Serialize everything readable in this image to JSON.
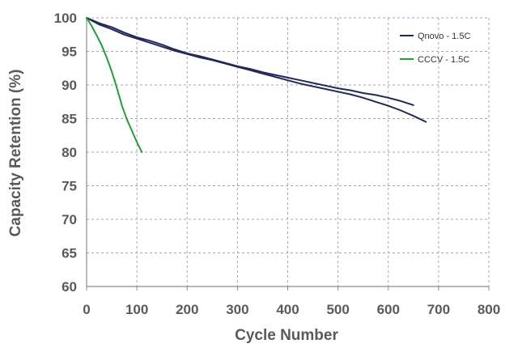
{
  "chart_data": {
    "type": "line",
    "title": "",
    "xlabel": "Cycle Number",
    "ylabel": "Capacity Retention (%)",
    "xlim": [
      0,
      800
    ],
    "ylim": [
      60,
      100
    ],
    "xticks": [
      0,
      100,
      200,
      300,
      400,
      500,
      600,
      700,
      800
    ],
    "yticks": [
      60,
      65,
      70,
      75,
      80,
      85,
      90,
      95,
      100
    ],
    "grid": true,
    "legend_position": "top-right",
    "series": [
      {
        "name": "Qnovo - 1.5C",
        "color": "#1f2a5c",
        "x": [
          0,
          25,
          50,
          75,
          100,
          125,
          150,
          175,
          200,
          225,
          250,
          275,
          300,
          325,
          350,
          375,
          400,
          425,
          450,
          475,
          500,
          525,
          550,
          575,
          600,
          625,
          650
        ],
        "y": [
          100,
          99.2,
          98.6,
          97.8,
          97.1,
          96.6,
          96.0,
          95.3,
          94.7,
          94.3,
          93.8,
          93.3,
          92.8,
          92.4,
          91.9,
          91.5,
          91.1,
          90.7,
          90.3,
          89.9,
          89.5,
          89.2,
          88.8,
          88.5,
          88.1,
          87.6,
          87.0
        ]
      },
      {
        "name": "Qnovo - 1.5C",
        "color": "#1f2a5c",
        "x": [
          0,
          25,
          50,
          75,
          100,
          125,
          150,
          175,
          200,
          225,
          250,
          275,
          300,
          325,
          350,
          375,
          400,
          425,
          450,
          475,
          500,
          525,
          550,
          575,
          600,
          625,
          650,
          675
        ],
        "y": [
          100,
          99.0,
          98.3,
          97.5,
          96.9,
          96.3,
          95.7,
          95.1,
          94.6,
          94.1,
          93.7,
          93.2,
          92.7,
          92.2,
          91.7,
          91.2,
          90.7,
          90.2,
          89.8,
          89.4,
          89.0,
          88.6,
          88.1,
          87.5,
          86.9,
          86.2,
          85.4,
          84.5
        ]
      },
      {
        "name": "CCCV - 1.5C",
        "color": "#1fa03a",
        "x": [
          0,
          10,
          20,
          30,
          40,
          50,
          60,
          70,
          80,
          90,
          100,
          110
        ],
        "y": [
          100,
          98.8,
          97.4,
          95.9,
          94.1,
          92.0,
          89.6,
          87.0,
          84.9,
          83.2,
          81.5,
          80.0
        ]
      }
    ],
    "legend": [
      {
        "label": "Qnovo - 1.5C",
        "color": "#1f2a5c"
      },
      {
        "label": "CCCV - 1.5C",
        "color": "#1fa03a"
      }
    ]
  }
}
